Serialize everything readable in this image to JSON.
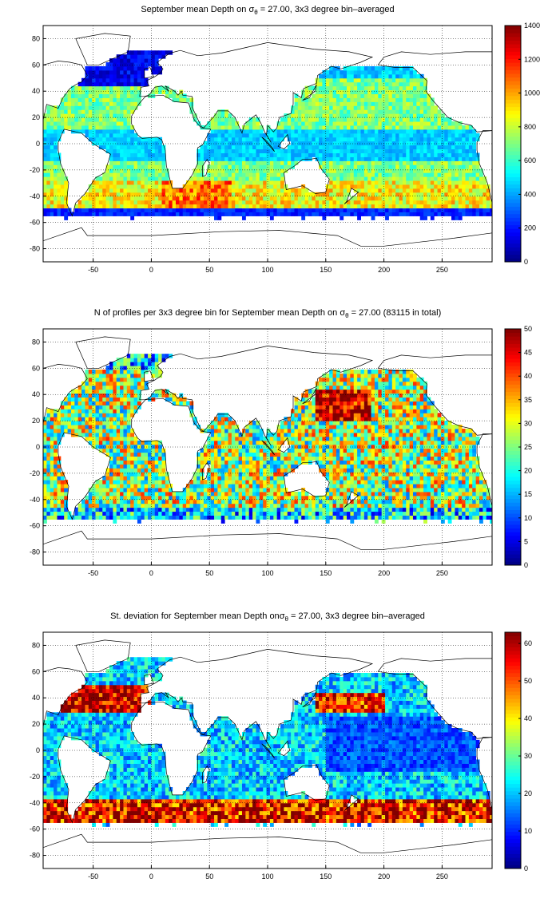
{
  "chart_data": [
    {
      "type": "heatmap",
      "title_pre": "September mean Depth on ",
      "title_sigma": "σ",
      "title_sub": "θ",
      "title_post": " = 27.00, 3x3 degree bin–averaged",
      "x_ticks": [
        -50,
        0,
        50,
        100,
        150,
        200,
        250
      ],
      "y_ticks": [
        80,
        60,
        40,
        20,
        0,
        -20,
        -40,
        -60,
        -80
      ],
      "xlim": [
        -93,
        293
      ],
      "ylim": [
        -90,
        90
      ],
      "colorbar_ticks": [
        1400,
        1200,
        1000,
        800,
        600,
        400,
        200,
        0
      ],
      "clim": [
        0,
        1400
      ],
      "colormap": "jet",
      "grid": "dotted",
      "field": "depth"
    },
    {
      "type": "heatmap",
      "title_pre": "N of profiles per 3x3 degree bin for September mean Depth on ",
      "title_sigma": "σ",
      "title_sub": "θ",
      "title_post": " = 27.00 (83115 in total)",
      "x_ticks": [
        -50,
        0,
        50,
        100,
        150,
        200,
        250
      ],
      "y_ticks": [
        80,
        60,
        40,
        20,
        0,
        -20,
        -40,
        -60,
        -80
      ],
      "xlim": [
        -93,
        293
      ],
      "ylim": [
        -90,
        90
      ],
      "colorbar_ticks": [
        50,
        45,
        40,
        35,
        30,
        25,
        20,
        15,
        10,
        5,
        0
      ],
      "clim": [
        0,
        50
      ],
      "colormap": "jet",
      "grid": "dotted",
      "field": "count"
    },
    {
      "type": "heatmap",
      "title_pre": "St. deviation for September mean Depth on",
      "title_sigma": "σ",
      "title_sub": "θ",
      "title_post": " = 27.00, 3x3 degree bin–averaged",
      "x_ticks": [
        -50,
        0,
        50,
        100,
        150,
        200,
        250
      ],
      "y_ticks": [
        80,
        60,
        40,
        20,
        0,
        -20,
        -40,
        -60,
        -80
      ],
      "xlim": [
        -93,
        293
      ],
      "ylim": [
        -90,
        90
      ],
      "colorbar_ticks": [
        60,
        50,
        40,
        30,
        20,
        10,
        0
      ],
      "clim": [
        0,
        63
      ],
      "colormap": "jet",
      "grid": "dotted",
      "field": "std"
    }
  ]
}
